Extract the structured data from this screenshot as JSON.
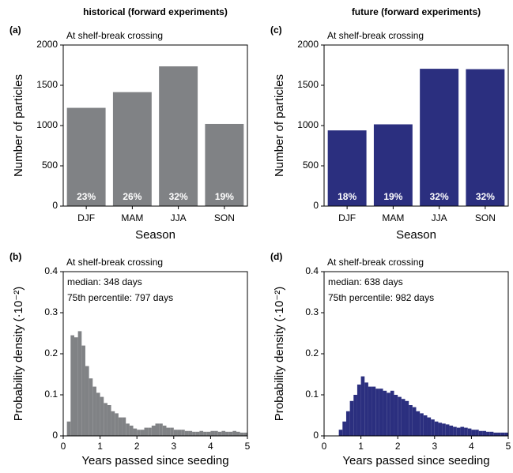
{
  "chart_data": [
    {
      "type": "bar",
      "panel": "(a)",
      "title": "historical (forward experiments)",
      "subtitle": "At shelf-break crossing",
      "ylabel": "Number of particles",
      "xlabel": "Season",
      "categories": [
        "DJF",
        "MAM",
        "JJA",
        "SON"
      ],
      "values": [
        1220,
        1415,
        1735,
        1020
      ],
      "bar_labels": [
        "23%",
        "26%",
        "32%",
        "19%"
      ],
      "color": "#808285",
      "ylim": [
        0,
        2000
      ],
      "yticks": [
        0,
        500,
        1000,
        1500,
        2000
      ]
    },
    {
      "type": "histogram",
      "panel": "(b)",
      "subtitle": "At shelf-break crossing",
      "annotations": [
        "median: 348 days",
        "75th percentile: 797 days"
      ],
      "ylabel": "Probability density (·10⁻²)",
      "xlabel": "Years passed since seeding",
      "bins": [
        0.1,
        0.2,
        0.3,
        0.4,
        0.5,
        0.6,
        0.7,
        0.8,
        0.9,
        1.0,
        1.1,
        1.2,
        1.3,
        1.4,
        1.5,
        1.6,
        1.7,
        1.8,
        1.9,
        2.0,
        2.1,
        2.2,
        2.3,
        2.4,
        2.5,
        2.6,
        2.7,
        2.8,
        2.9,
        3.0,
        3.1,
        3.2,
        3.3,
        3.4,
        3.5,
        3.6,
        3.7,
        3.8,
        3.9,
        4.0,
        4.1,
        4.2,
        4.3,
        4.4,
        4.5,
        4.6,
        4.7,
        4.8,
        4.9,
        5.0
      ],
      "values": [
        0.035,
        0.245,
        0.24,
        0.255,
        0.22,
        0.17,
        0.14,
        0.12,
        0.105,
        0.095,
        0.08,
        0.075,
        0.06,
        0.055,
        0.045,
        0.045,
        0.03,
        0.025,
        0.018,
        0.015,
        0.015,
        0.02,
        0.02,
        0.025,
        0.03,
        0.03,
        0.025,
        0.02,
        0.02,
        0.015,
        0.015,
        0.015,
        0.012,
        0.012,
        0.01,
        0.01,
        0.012,
        0.01,
        0.01,
        0.012,
        0.012,
        0.01,
        0.012,
        0.01,
        0.01,
        0.012,
        0.01,
        0.008,
        0.008
      ],
      "color": "#808285",
      "xlim": [
        0,
        5
      ],
      "xticks": [
        0,
        1,
        2,
        3,
        4,
        5
      ],
      "ylim": [
        0,
        0.4
      ],
      "yticks": [
        0,
        0.1,
        0.2,
        0.3,
        0.4
      ]
    },
    {
      "type": "bar",
      "panel": "(c)",
      "title": "future (forward experiments)",
      "subtitle": "At shelf-break crossing",
      "ylabel": "Number of particles",
      "xlabel": "Season",
      "categories": [
        "DJF",
        "MAM",
        "JJA",
        "SON"
      ],
      "values": [
        940,
        1015,
        1705,
        1700
      ],
      "bar_labels": [
        "18%",
        "19%",
        "32%",
        "32%"
      ],
      "color": "#2b2f7f",
      "ylim": [
        0,
        2000
      ],
      "yticks": [
        0,
        500,
        1000,
        1500,
        2000
      ]
    },
    {
      "type": "histogram",
      "panel": "(d)",
      "subtitle": "At shelf-break crossing",
      "annotations": [
        "median: 638 days",
        "75th percentile: 982 days"
      ],
      "ylabel": "Probability density (·10⁻²)",
      "xlabel": "Years passed since seeding",
      "bins": [
        0.4,
        0.5,
        0.6,
        0.7,
        0.8,
        0.9,
        1.0,
        1.1,
        1.2,
        1.3,
        1.4,
        1.5,
        1.6,
        1.7,
        1.8,
        1.9,
        2.0,
        2.1,
        2.2,
        2.3,
        2.4,
        2.5,
        2.6,
        2.7,
        2.8,
        2.9,
        3.0,
        3.1,
        3.2,
        3.3,
        3.4,
        3.5,
        3.6,
        3.7,
        3.8,
        3.9,
        4.0,
        4.1,
        4.2,
        4.3,
        4.4,
        4.5,
        4.6,
        4.7,
        4.8,
        4.9,
        5.0
      ],
      "values": [
        0.015,
        0.035,
        0.06,
        0.085,
        0.1,
        0.125,
        0.145,
        0.13,
        0.12,
        0.12,
        0.115,
        0.115,
        0.11,
        0.105,
        0.11,
        0.1,
        0.095,
        0.09,
        0.085,
        0.075,
        0.07,
        0.06,
        0.055,
        0.05,
        0.045,
        0.04,
        0.035,
        0.032,
        0.03,
        0.028,
        0.025,
        0.022,
        0.02,
        0.022,
        0.02,
        0.018,
        0.015,
        0.015,
        0.012,
        0.012,
        0.01,
        0.01,
        0.008,
        0.008,
        0.008,
        0.008
      ],
      "color": "#2b2f7f",
      "xlim": [
        0,
        5
      ],
      "xticks": [
        0,
        1,
        2,
        3,
        4,
        5
      ],
      "ylim": [
        0,
        0.4
      ],
      "yticks": [
        0,
        0.1,
        0.2,
        0.3,
        0.4
      ]
    }
  ]
}
